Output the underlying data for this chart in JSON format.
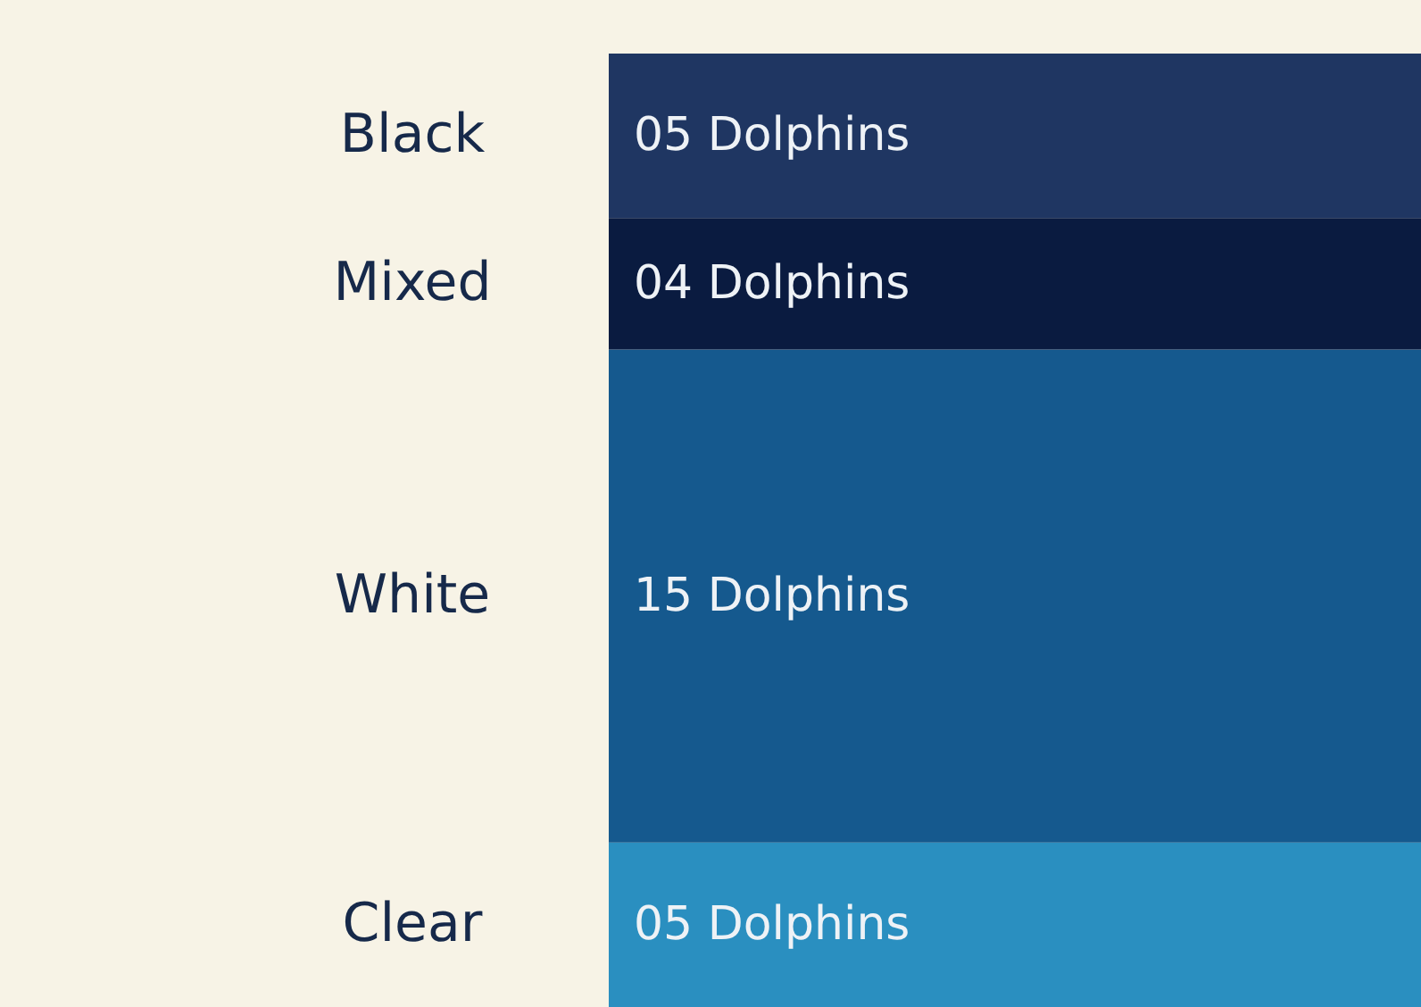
{
  "chart_data": {
    "type": "bar",
    "stacked": true,
    "categories": [
      null
    ],
    "series": [
      {
        "name": "Clear",
        "color": "#2a8fc0",
        "values": [
          5
        ],
        "value_labels": [
          "05 Dolphins"
        ]
      },
      {
        "name": "White",
        "color": "#15598e",
        "values": [
          15
        ],
        "value_labels": [
          "15 Dolphins"
        ]
      },
      {
        "name": "Mixed",
        "color": "#0a1b40",
        "values": [
          4
        ],
        "value_labels": [
          "04 Dolphins"
        ]
      },
      {
        "name": "Black",
        "color": "#1f3662",
        "values": [
          5
        ],
        "value_labels": [
          "05 Dolphins"
        ]
      }
    ]
  }
}
